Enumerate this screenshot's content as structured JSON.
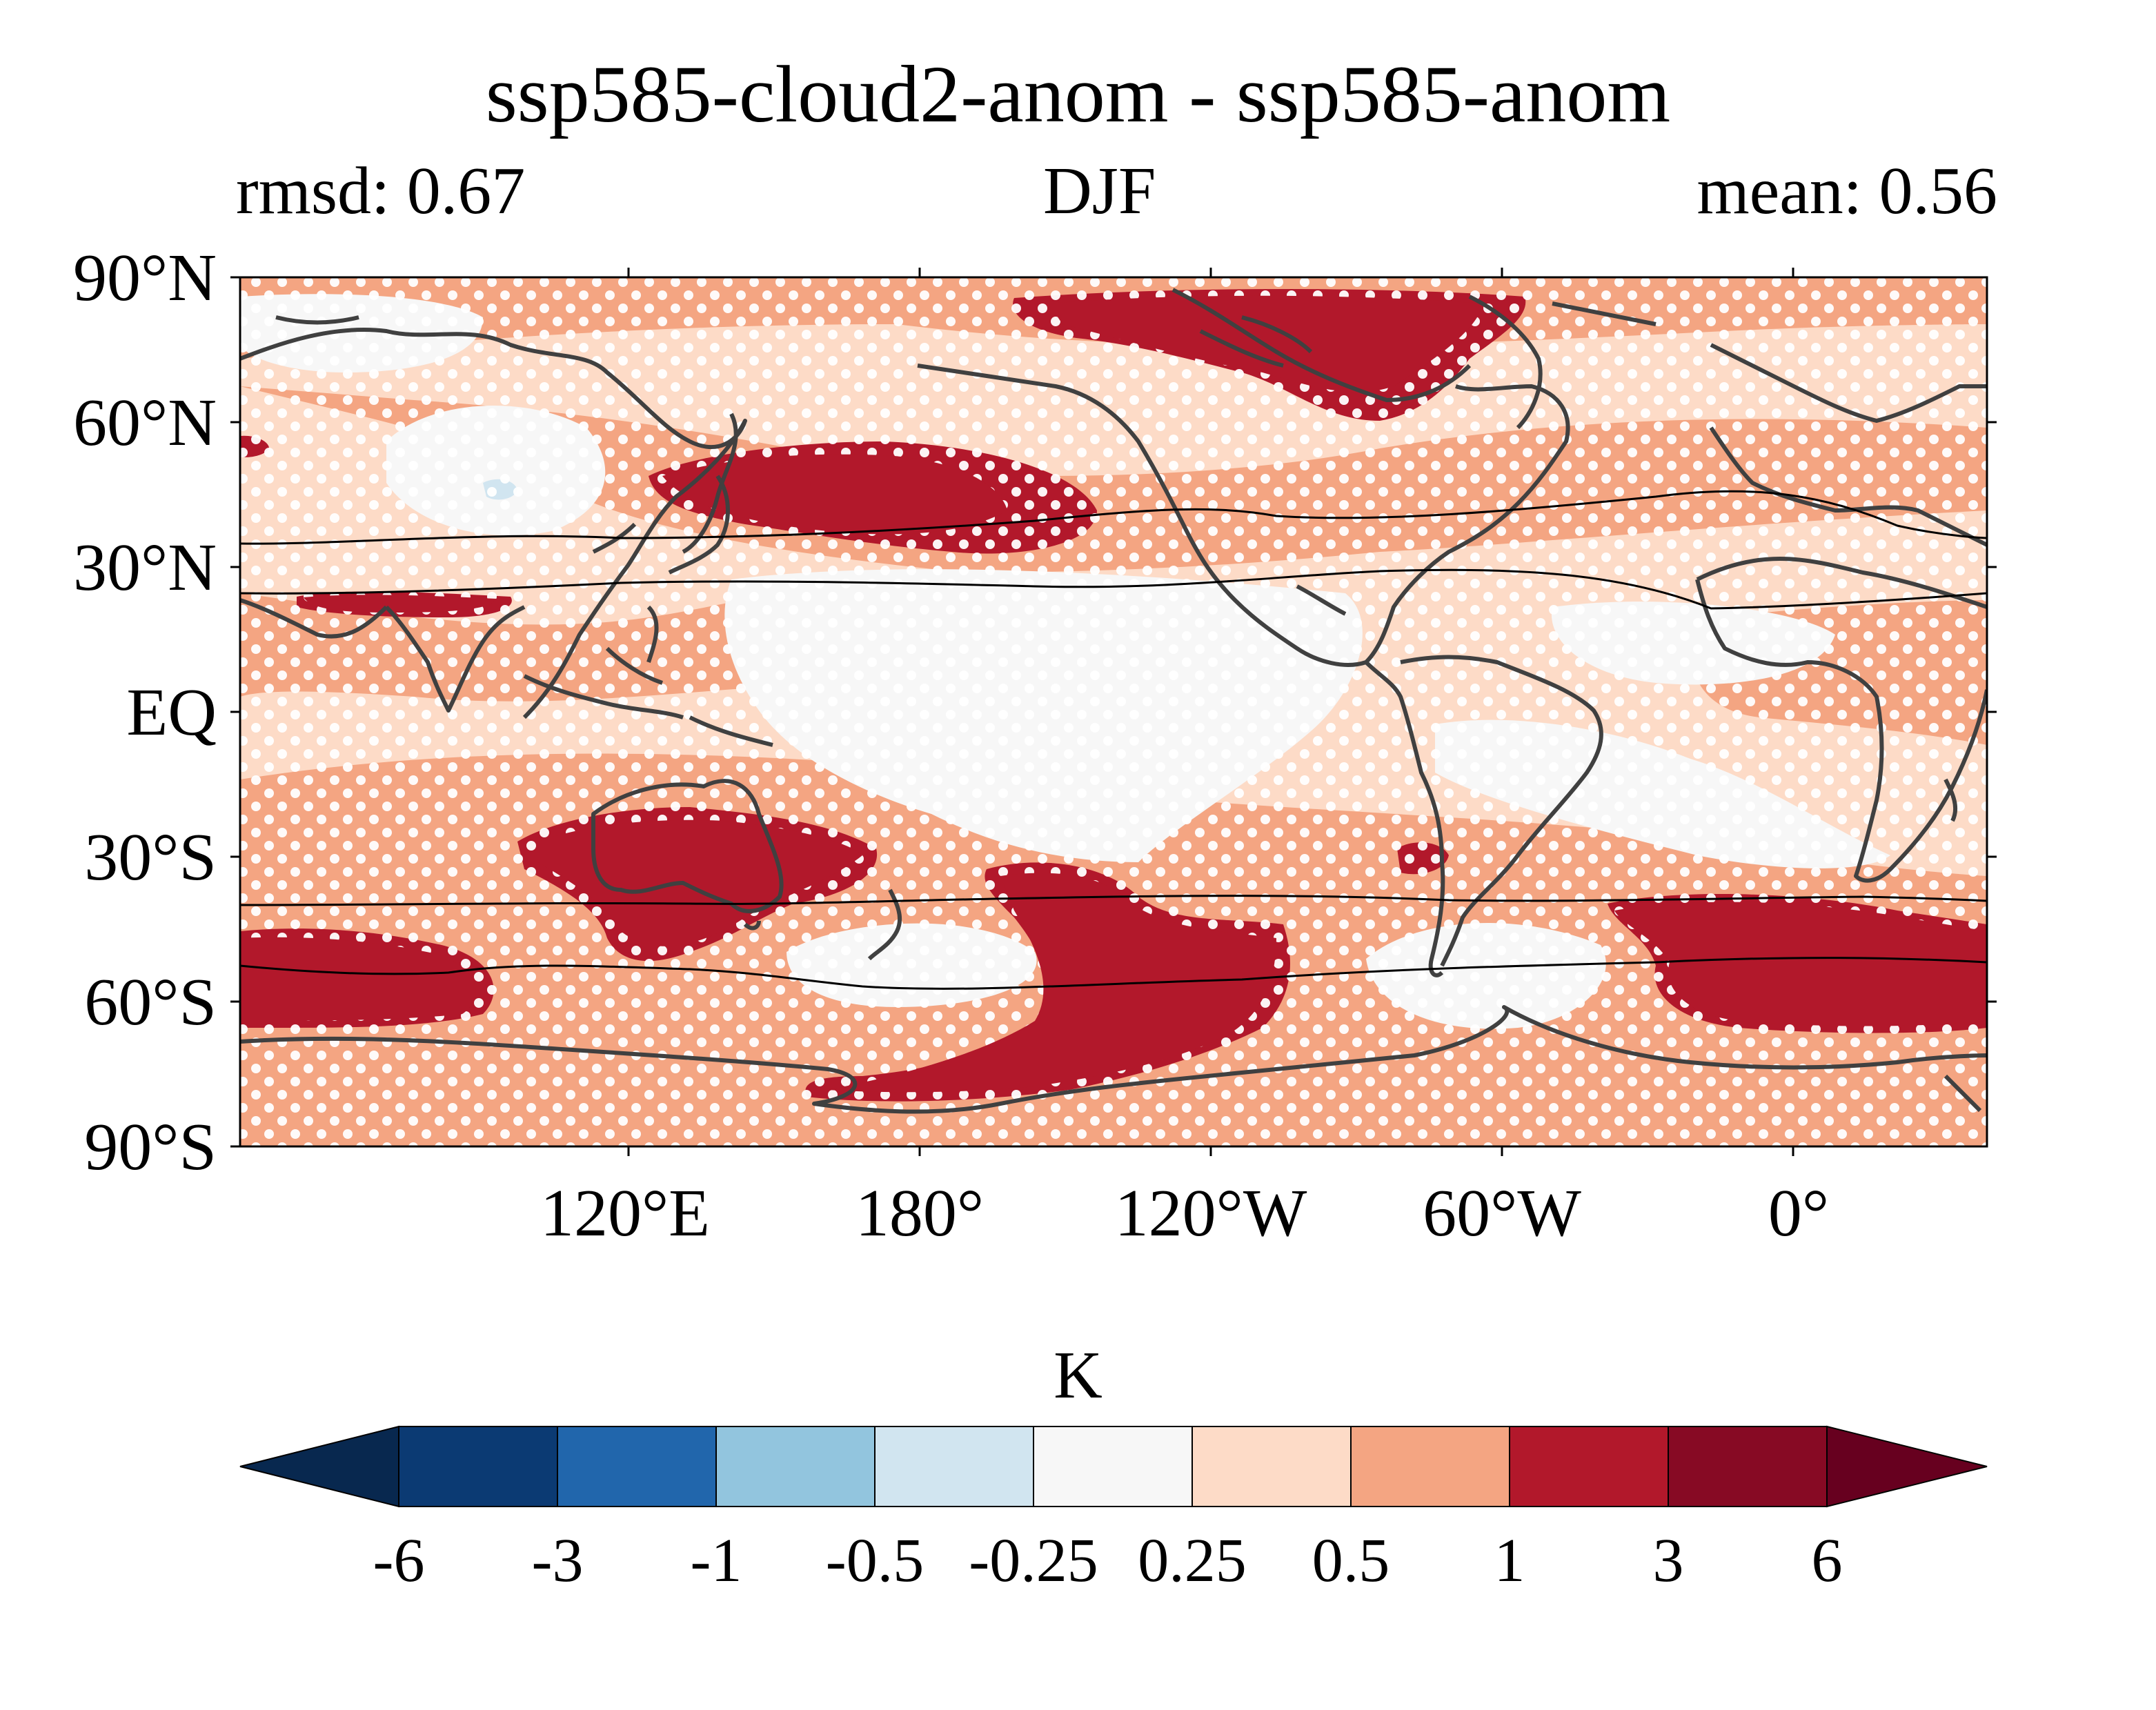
{
  "title": "ssp585-cloud2-anom - ssp585-anom",
  "stats": {
    "rmsd": "rmsd: 0.67",
    "season": "DJF",
    "mean": "mean: 0.56"
  },
  "map": {
    "projection": "PlateCarree, central longitude ~-60°, extent 20°E to 20°E (full globe)",
    "lat_ticks": [
      "90°N",
      "60°N",
      "30°N",
      "EQ",
      "30°S",
      "60°S",
      "90°S"
    ],
    "lon_ticks": [
      "120°E",
      "180°",
      "120°W",
      "60°W",
      "0°"
    ],
    "stippling": "white dots where anomaly difference not significant",
    "contour_lines": "black jet latitude lines (two per hemisphere)"
  },
  "colorbar": {
    "unit": "K",
    "levels": [
      "-6",
      "-3",
      "-1",
      "-0.5",
      "-0.25",
      "0.25",
      "0.5",
      "1",
      "3",
      "6"
    ],
    "colors": [
      "#08284f",
      "#0b3a73",
      "#2166ac",
      "#92c5de",
      "#d1e5f0",
      "#f7f7f7",
      "#fddbc7",
      "#f4a582",
      "#b2182b",
      "#870a24",
      "#67001f"
    ],
    "extend": "both"
  },
  "colors": {
    "coast": "#404040",
    "jet_line": "#000000",
    "bg_cat_05": "#fddbc7",
    "bg_cat_1": "#f4a582",
    "bg_cat_3": "#b2182b",
    "bg_near_zero": "#f7f7f7",
    "bg_neg": "#d1e5f0"
  }
}
